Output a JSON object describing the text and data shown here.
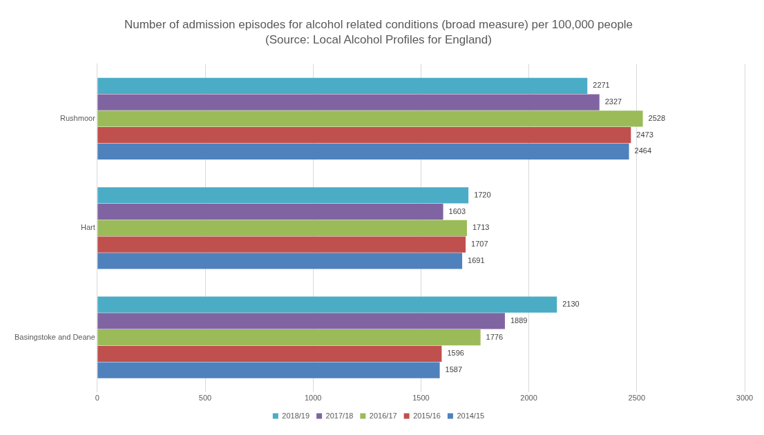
{
  "chart_data": {
    "type": "bar",
    "orientation": "horizontal",
    "title": "Number of admission episodes for alcohol related conditions (broad measure) per 100,000 people",
    "subtitle": "(Source: Local Alcohol Profiles for England)",
    "categories": [
      "Rushmoor",
      "Hart",
      "Basingstoke and Deane"
    ],
    "series": [
      {
        "name": "2018/19",
        "color": "#4bacc6",
        "values": [
          2271,
          1720,
          2130
        ]
      },
      {
        "name": "2017/18",
        "color": "#8064a2",
        "values": [
          2327,
          1603,
          1889
        ]
      },
      {
        "name": "2016/17",
        "color": "#9bbb59",
        "values": [
          2528,
          1713,
          1776
        ]
      },
      {
        "name": "2015/16",
        "color": "#c0504d",
        "values": [
          2473,
          1707,
          1596
        ]
      },
      {
        "name": "2014/15",
        "color": "#4f81bd",
        "values": [
          2464,
          1691,
          1587
        ]
      }
    ],
    "xlim": [
      0,
      3000
    ],
    "xticks": [
      0,
      500,
      1000,
      1500,
      2000,
      2500,
      3000
    ],
    "grid": "x",
    "legend": "bottom",
    "data_labels": true
  }
}
